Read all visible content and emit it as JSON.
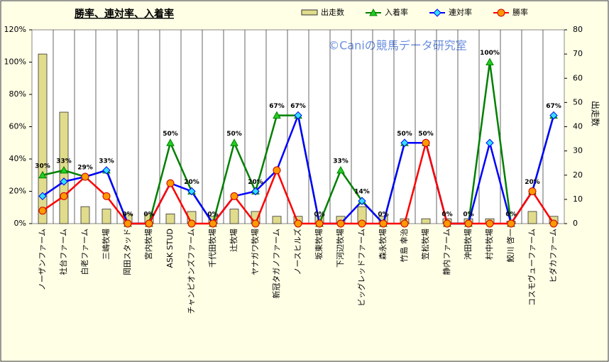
{
  "chart_data": {
    "type": "combo",
    "title": "勝率、連対率、入着率",
    "watermark": "©Caniの競馬データ研究室",
    "y2label": "出走数",
    "categories": [
      "ノーザンファーム",
      "社台ファーム",
      "白老ファーム",
      "三嶋牧場",
      "岡田スタッド",
      "宮内牧場",
      "ASK STUD",
      "チャンピオンズファーム",
      "千代田牧場",
      "辻牧場",
      "ヤナガワ牧場",
      "新冠タガノファーム",
      "ノースヒルズ",
      "坂東牧場",
      "下河辺牧場",
      "ビッグレッドファーム",
      "森永牧場",
      "竹島 幸治",
      "笠松牧場",
      "静内ファーム",
      "沖田牧場",
      "村中牧場",
      "鮫川 啓一",
      "コスモヴューファーム",
      "ヒダカファーム"
    ],
    "series": [
      {
        "name": "出走数",
        "type": "bar",
        "axis": "y2",
        "color": "#e0dc8c",
        "values": [
          70,
          46,
          7,
          6,
          4,
          4,
          4,
          5,
          3,
          6,
          5,
          3,
          3,
          3,
          3,
          7,
          3,
          2,
          2,
          2,
          2,
          2,
          1,
          5,
          3
        ]
      },
      {
        "name": "入着率",
        "type": "line",
        "color": "#008000",
        "marker": "triangle",
        "marker_color": "#22cc22",
        "values": [
          30,
          33,
          29,
          33,
          0,
          0,
          50,
          20,
          0,
          50,
          20,
          67,
          67,
          0,
          33,
          14,
          0,
          50,
          50,
          0,
          0,
          100,
          0,
          20,
          67
        ],
        "value_labels": [
          "30%",
          "33%",
          "29%",
          "33%",
          "0%",
          "0%",
          "50%",
          "20%",
          "0%",
          "50%",
          "20%",
          "67%",
          "67%",
          "0%",
          "33%",
          "14%",
          "0%",
          "50%",
          "50%",
          "0%",
          "0%",
          "100%",
          "0%",
          "20%",
          "67%"
        ]
      },
      {
        "name": "連対率",
        "type": "line",
        "color": "#0000ff",
        "marker": "diamond",
        "marker_color": "#33e0ff",
        "values": [
          17,
          26,
          29,
          33,
          0,
          0,
          25,
          20,
          0,
          17,
          20,
          33,
          67,
          0,
          0,
          14,
          0,
          50,
          50,
          0,
          0,
          50,
          0,
          20,
          67
        ]
      },
      {
        "name": "勝率",
        "type": "line",
        "color": "#ff0000",
        "marker": "circle",
        "marker_color": "#ff9900",
        "values": [
          8,
          17,
          29,
          17,
          0,
          0,
          25,
          0,
          0,
          17,
          0,
          33,
          0,
          0,
          0,
          0,
          0,
          0,
          50,
          0,
          0,
          0,
          0,
          20,
          0
        ]
      }
    ],
    "ylim": [
      0,
      120
    ],
    "yticks": [
      {
        "value": 0,
        "label": "0%"
      },
      {
        "value": 20,
        "label": "20%"
      },
      {
        "value": 40,
        "label": "40%"
      },
      {
        "value": 60,
        "label": "60%"
      },
      {
        "value": 80,
        "label": "80%"
      },
      {
        "value": 100,
        "label": "100%"
      },
      {
        "value": 120,
        "label": "120%"
      }
    ],
    "y2lim": [
      0,
      80
    ],
    "y2ticks": [
      0,
      10,
      20,
      30,
      40,
      50,
      60,
      70,
      80
    ]
  }
}
